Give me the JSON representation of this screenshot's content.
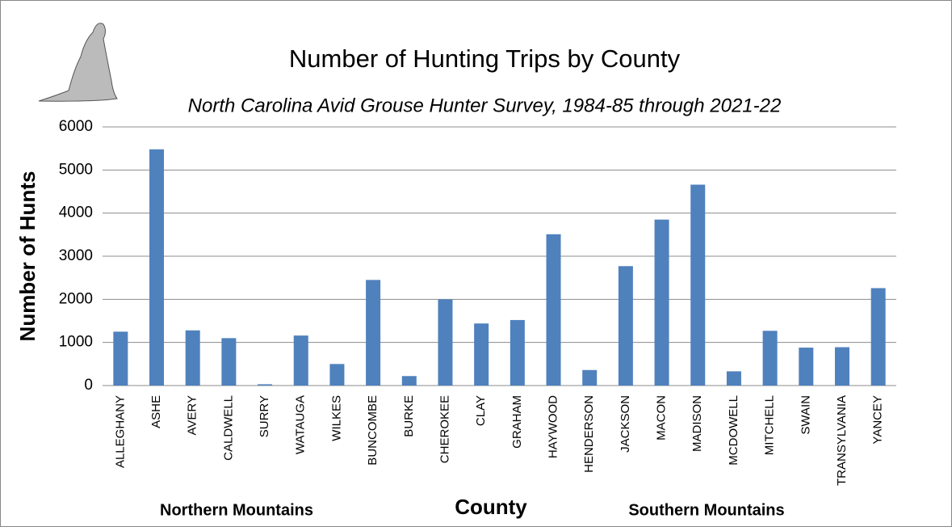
{
  "chart_data": {
    "type": "bar",
    "title": "Number of Hunting Trips by County",
    "subtitle": "North Carolina Avid Grouse Hunter Survey, 1984-85 through 2021-22",
    "y_label": "Number of Hunts",
    "x_label": "County",
    "annotations": [
      "Northern Mountains",
      "Southern Mountains"
    ],
    "categories": [
      "ALLEGHANY",
      "ASHE",
      "AVERY",
      "CALDWELL",
      "SURRY",
      "WATAUGA",
      "WILKES",
      "BUNCOMBE",
      "BURKE",
      "CHEROKEE",
      "CLAY",
      "GRAHAM",
      "HAYWOOD",
      "HENDERSON",
      "JACKSON",
      "MACON",
      "MADISON",
      "MCDOWELL",
      "MITCHELL",
      "SWAIN",
      "TRANSYLVANIA",
      "YANCEY"
    ],
    "values": [
      1250,
      5480,
      1280,
      1100,
      30,
      1160,
      500,
      2450,
      220,
      2000,
      1440,
      1520,
      3510,
      360,
      2770,
      3850,
      4660,
      330,
      1270,
      880,
      890,
      2260
    ],
    "color": "#4f81bd",
    "ylim": [
      0,
      6000
    ],
    "yticks": [
      0,
      1000,
      2000,
      3000,
      4000,
      5000,
      6000
    ],
    "grid": true
  }
}
